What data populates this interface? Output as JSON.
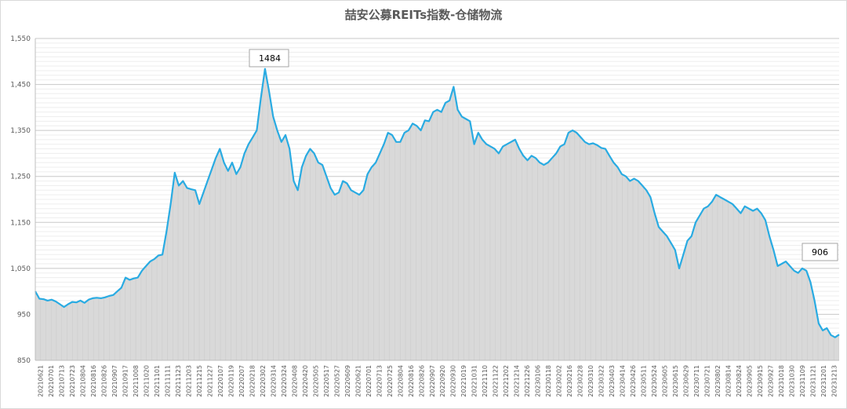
{
  "chart_data": {
    "type": "area",
    "title": "喆安公募REITs指数-仓储物流",
    "xlabel": "",
    "ylabel": "",
    "ylim": [
      850,
      1550
    ],
    "yticks": [
      "850",
      "950",
      "1,050",
      "1,150",
      "1,250",
      "1,350",
      "1,450",
      "1,550"
    ],
    "xticks": [
      "20210621",
      "20210701",
      "20210713",
      "20210723",
      "20210804",
      "20210816",
      "20210826",
      "20210907",
      "20210917",
      "20211008",
      "20211020",
      "20211101",
      "20211111",
      "20211123",
      "20211203",
      "20211215",
      "20211227",
      "20220107",
      "20220119",
      "20220207",
      "20220218",
      "20220302",
      "20220314",
      "20220324",
      "20220408",
      "20220420",
      "20220505",
      "20220517",
      "20220527",
      "20220609",
      "20220621",
      "20220701",
      "20220713",
      "20220725",
      "20220804",
      "20220816",
      "20220826",
      "20220907",
      "20220920",
      "20220930",
      "20221019",
      "20221031",
      "20221110",
      "20221122",
      "20221202",
      "20221214",
      "20221226",
      "20230106",
      "20230118",
      "20230202",
      "20230216",
      "20230228",
      "20230310",
      "20230322",
      "20230403",
      "20230414",
      "20230426",
      "20230511",
      "20230524",
      "20230605",
      "20230615",
      "20230629",
      "20230711",
      "20230721",
      "20230802",
      "20230814",
      "20230824",
      "20230905",
      "20230915",
      "20230927",
      "20231018",
      "20231030",
      "20231109",
      "20231121",
      "20231201",
      "20231213"
    ],
    "series": [
      {
        "values": [
          1000,
          984,
          983,
          980,
          982,
          978,
          972,
          966,
          972,
          977,
          976,
          980,
          975,
          982,
          985,
          986,
          985,
          987,
          990,
          992,
          1000,
          1008,
          1030,
          1025,
          1028,
          1030,
          1045,
          1055,
          1065,
          1070,
          1078,
          1080,
          1130,
          1190,
          1258,
          1230,
          1240,
          1225,
          1222,
          1220,
          1190,
          1215,
          1240,
          1265,
          1290,
          1310,
          1280,
          1262,
          1280,
          1255,
          1270,
          1300,
          1320,
          1335,
          1350,
          1420,
          1484,
          1435,
          1380,
          1350,
          1325,
          1340,
          1310,
          1240,
          1220,
          1270,
          1295,
          1310,
          1300,
          1280,
          1275,
          1250,
          1225,
          1210,
          1215,
          1240,
          1235,
          1220,
          1215,
          1210,
          1220,
          1255,
          1270,
          1280,
          1300,
          1320,
          1345,
          1340,
          1325,
          1325,
          1345,
          1350,
          1365,
          1360,
          1350,
          1372,
          1370,
          1390,
          1395,
          1390,
          1410,
          1415,
          1445,
          1395,
          1380,
          1375,
          1370,
          1320,
          1345,
          1330,
          1320,
          1315,
          1310,
          1300,
          1315,
          1320,
          1325,
          1330,
          1310,
          1295,
          1285,
          1295,
          1290,
          1280,
          1275,
          1280,
          1290,
          1300,
          1315,
          1320,
          1345,
          1350,
          1345,
          1335,
          1325,
          1320,
          1322,
          1318,
          1312,
          1310,
          1295,
          1280,
          1270,
          1255,
          1250,
          1240,
          1245,
          1240,
          1230,
          1220,
          1205,
          1170,
          1140,
          1130,
          1120,
          1105,
          1090,
          1050,
          1080,
          1110,
          1120,
          1150,
          1165,
          1180,
          1185,
          1195,
          1210,
          1205,
          1200,
          1195,
          1190,
          1180,
          1170,
          1185,
          1180,
          1175,
          1180,
          1170,
          1155,
          1120,
          1090,
          1055,
          1060,
          1065,
          1055,
          1045,
          1040,
          1050,
          1045,
          1020,
          980,
          930,
          915,
          920,
          905,
          900,
          906
        ]
      }
    ],
    "callouts": [
      {
        "label": "1484",
        "value": 1484
      },
      {
        "label": "906",
        "value": 906
      }
    ],
    "grid": true,
    "legend": "none"
  },
  "colors": {
    "line": "#29ABE2",
    "fill": "#D9D9D9",
    "grid": "#D9D9D9",
    "vgrid": "#CCCCCC",
    "axis": "#BFBFBF"
  }
}
